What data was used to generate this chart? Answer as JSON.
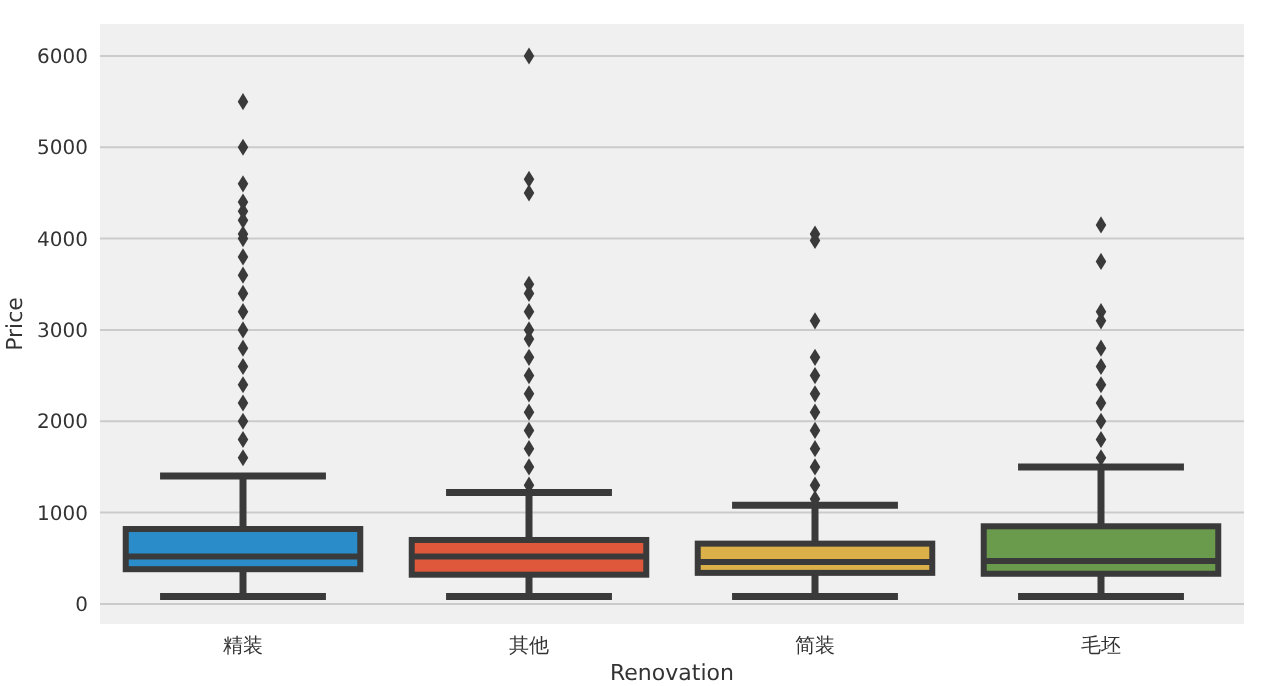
{
  "chart_data": {
    "type": "box",
    "xlabel": "Renovation",
    "ylabel": "Price",
    "categories": [
      "精装",
      "其他",
      "简装",
      "毛坯"
    ],
    "colors": [
      "#2a8cc8",
      "#e0583c",
      "#dcb048",
      "#6a9a4c"
    ],
    "boxes": [
      {
        "low": 80,
        "q1": 380,
        "median": 520,
        "q3": 820,
        "high": 1400,
        "outliers": [
          5500,
          5000,
          4600,
          4400,
          4300,
          4200,
          4050,
          4000,
          3800,
          3600,
          3400,
          3200,
          3000,
          2800,
          2600,
          2400,
          2200,
          2000,
          1800,
          1600
        ]
      },
      {
        "low": 80,
        "q1": 320,
        "median": 520,
        "q3": 700,
        "high": 1220,
        "outliers": [
          6000,
          4650,
          4500,
          3500,
          3400,
          3200,
          3000,
          2900,
          2700,
          2500,
          2300,
          2100,
          1900,
          1700,
          1500,
          1300
        ]
      },
      {
        "low": 80,
        "q1": 340,
        "median": 460,
        "q3": 660,
        "high": 1080,
        "outliers": [
          4050,
          3980,
          3100,
          2700,
          2500,
          2300,
          2100,
          1900,
          1700,
          1500,
          1300,
          1150
        ]
      },
      {
        "low": 80,
        "q1": 330,
        "median": 470,
        "q3": 850,
        "high": 1500,
        "outliers": [
          4150,
          3750,
          3200,
          3100,
          2800,
          2600,
          2400,
          2200,
          2000,
          1800,
          1600
        ]
      }
    ],
    "ylim": [
      -220,
      6350
    ],
    "yticks": [
      0,
      1000,
      2000,
      3000,
      4000,
      5000,
      6000
    ],
    "grid": "y",
    "marker": "diamond"
  }
}
